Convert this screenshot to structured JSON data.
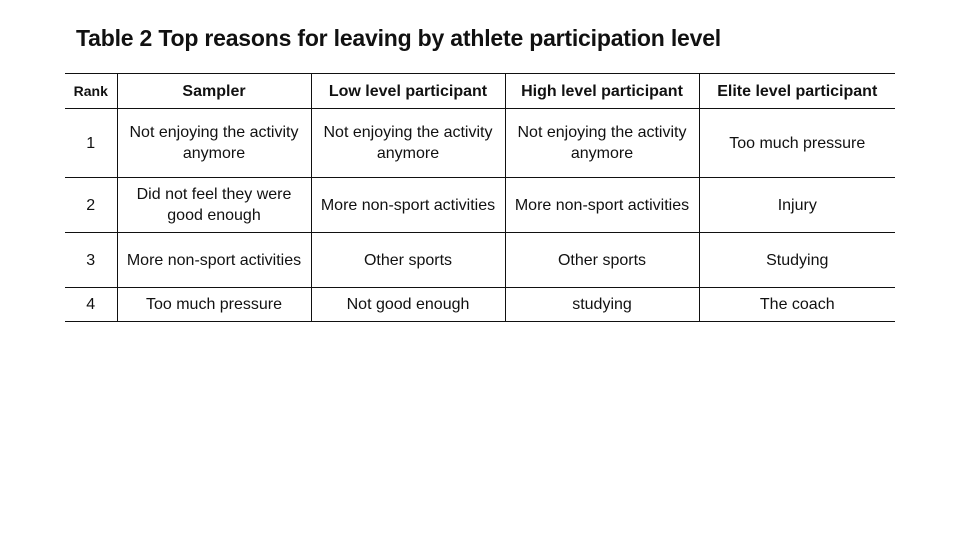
{
  "title": "Table 2 Top reasons for leaving by athlete participation level",
  "table": {
    "headers": [
      "Rank",
      "Sampler",
      "Low level participant",
      "High level participant",
      "Elite level participant"
    ],
    "rows": [
      [
        "1",
        "Not enjoying the activity anymore",
        "Not enjoying the activity anymore",
        "Not enjoying the activity anymore",
        "Too much pressure"
      ],
      [
        "2",
        "Did not feel they were good enough",
        "More non-sport activities",
        "More non-sport activities",
        "Injury"
      ],
      [
        "3",
        "More non-sport activities",
        "Other sports",
        "Other sports",
        "Studying"
      ],
      [
        "4",
        "Too much pressure",
        "Not good enough",
        "studying",
        "The coach"
      ]
    ]
  }
}
